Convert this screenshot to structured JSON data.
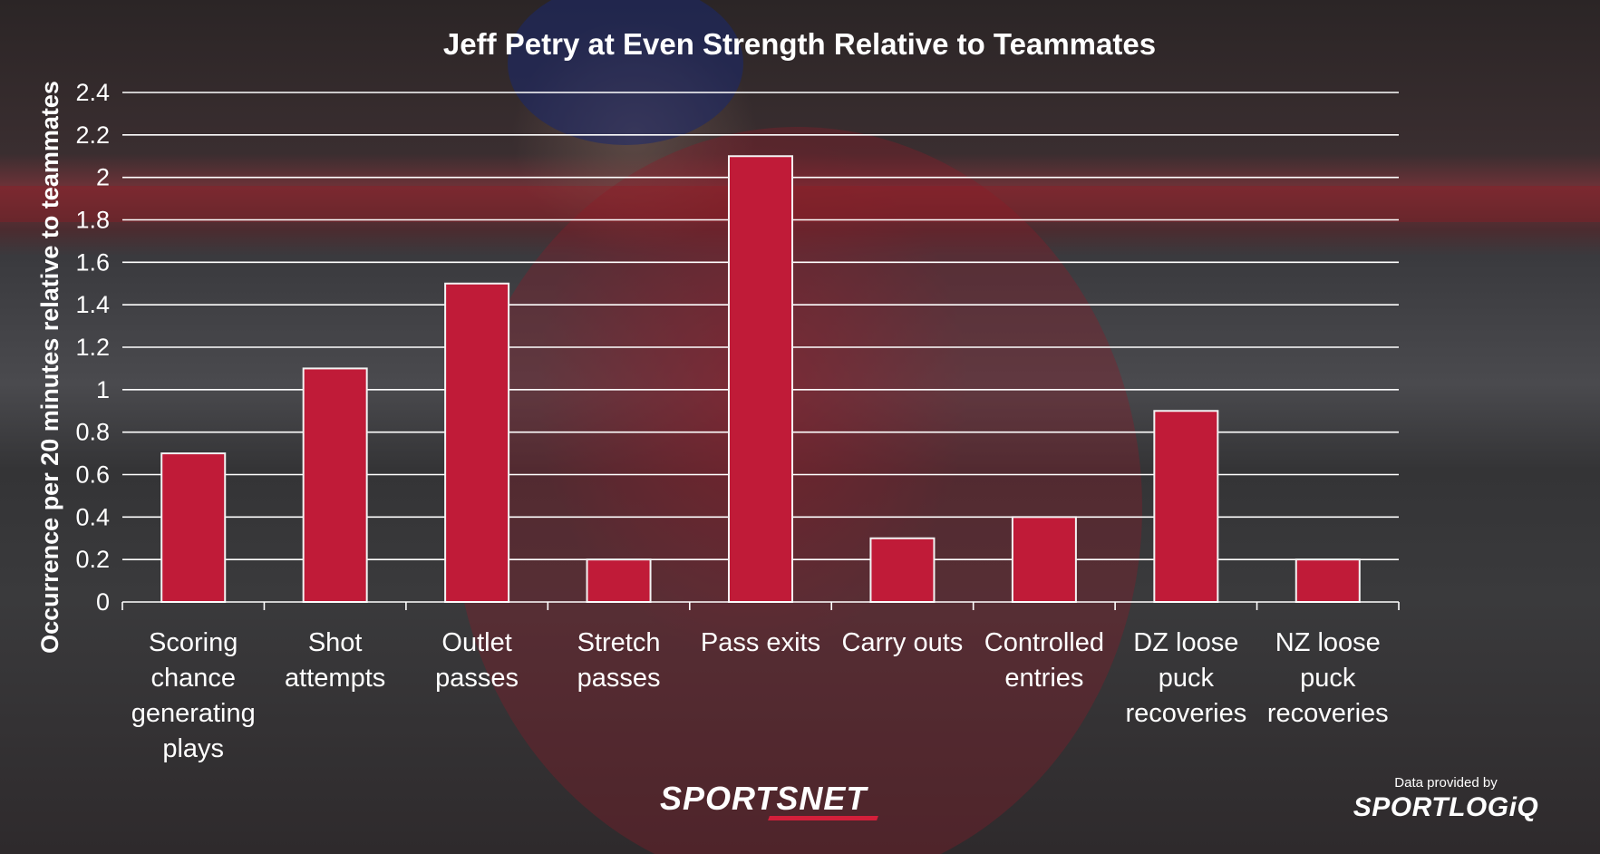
{
  "chart_data": {
    "type": "bar",
    "title": "Jeff Petry at Even Strength Relative to Teammates",
    "ylabel": "Occurrence per 20 minutes relative to teammates",
    "xlabel": "",
    "ylim": [
      0,
      2.4
    ],
    "yticks": [
      "0",
      "0.2",
      "0.4",
      "0.6",
      "0.8",
      "1",
      "1.2",
      "1.4",
      "1.6",
      "1.8",
      "2",
      "2.2",
      "2.4"
    ],
    "grid": true,
    "categories": [
      [
        "Scoring",
        "chance",
        "generating",
        "plays"
      ],
      [
        "Shot",
        "attempts"
      ],
      [
        "Outlet",
        "passes"
      ],
      [
        "Stretch",
        "passes"
      ],
      [
        "Pass exits"
      ],
      [
        "Carry outs"
      ],
      [
        "Controlled",
        "entries"
      ],
      [
        "DZ loose",
        "puck",
        "recoveries"
      ],
      [
        "NZ loose",
        "puck",
        "recoveries"
      ]
    ],
    "values": [
      0.7,
      1.1,
      1.5,
      0.2,
      2.1,
      0.3,
      0.4,
      0.9,
      0.2
    ],
    "bar_color": "#c01b38"
  },
  "branding": {
    "broadcaster_logo": "SPORTSNET",
    "credit_text": "Data provided by",
    "data_logo": "SPORTLOGiQ"
  }
}
